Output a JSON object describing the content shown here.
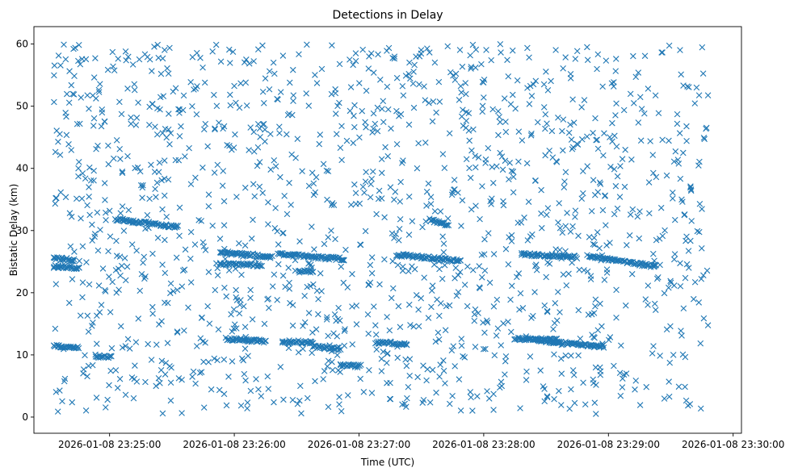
{
  "chart_data": {
    "type": "scatter",
    "title": "Detections in Delay",
    "xlabel": "Time (UTC)",
    "ylabel": "Bistatic Delay (km)",
    "marker": "x",
    "color": "#1f77b4",
    "x_unit": "seconds after 2026-01-08 23:24:33",
    "x_start": "2026-01-08 23:24:33",
    "x_end": "2026-01-08 23:29:48",
    "xlim_seconds": [
      -9.4,
      331
    ],
    "ylim": [
      -2.6,
      62.8
    ],
    "x_ticks_seconds": [
      27,
      87,
      147,
      207,
      267,
      327
    ],
    "x_tick_labels": [
      "2026-01-08 23:25:00",
      "2026-01-08 23:26:00",
      "2026-01-08 23:27:00",
      "2026-01-08 23:28:00",
      "2026-01-08 23:29:00",
      "2026-01-08 23:30:00"
    ],
    "y_ticks": [
      0,
      10,
      20,
      30,
      40,
      50,
      60
    ],
    "y_tick_labels": [
      "0",
      "10",
      "20",
      "30",
      "40",
      "50",
      "60"
    ],
    "tracks": [
      {
        "t": [
          30,
          60
        ],
        "y": [
          31.8,
          30.6
        ]
      },
      {
        "t": [
          80,
          105
        ],
        "y": [
          26.5,
          25.8
        ]
      },
      {
        "t": [
          108,
          140
        ],
        "y": [
          26.2,
          25.4
        ]
      },
      {
        "t": [
          165,
          196
        ],
        "y": [
          26.1,
          25.1
        ]
      },
      {
        "t": [
          225,
          252
        ],
        "y": [
          26.2,
          25.7
        ]
      },
      {
        "t": [
          257,
          290
        ],
        "y": [
          25.9,
          24.2
        ]
      },
      {
        "t": [
          0,
          10
        ],
        "y": [
          25.5,
          25.3
        ]
      },
      {
        "t": [
          0,
          12
        ],
        "y": [
          24.2,
          24.0
        ]
      },
      {
        "t": [
          80,
          100
        ],
        "y": [
          24.6,
          24.4
        ]
      },
      {
        "t": [
          118,
          125
        ],
        "y": [
          23.4,
          23.4
        ]
      },
      {
        "t": [
          83,
          102
        ],
        "y": [
          12.6,
          12.2
        ]
      },
      {
        "t": [
          110,
          125
        ],
        "y": [
          12.2,
          12.0
        ]
      },
      {
        "t": [
          125,
          138
        ],
        "y": [
          11.3,
          11.0
        ]
      },
      {
        "t": [
          155,
          170
        ],
        "y": [
          12.0,
          11.8
        ]
      },
      {
        "t": [
          222,
          242
        ],
        "y": [
          12.6,
          12.4
        ]
      },
      {
        "t": [
          232,
          265
        ],
        "y": [
          12.3,
          11.3
        ]
      },
      {
        "t": [
          0,
          12
        ],
        "y": [
          11.5,
          11.1
        ]
      },
      {
        "t": [
          20,
          28
        ],
        "y": [
          9.8,
          9.6
        ]
      },
      {
        "t": [
          181,
          190
        ],
        "y": [
          31.8,
          30.8
        ]
      },
      {
        "t": [
          138,
          148
        ],
        "y": [
          8.3,
          8.2
        ]
      }
    ],
    "n_background": 1450,
    "delay_range_km": [
      0.5,
      60
    ]
  }
}
